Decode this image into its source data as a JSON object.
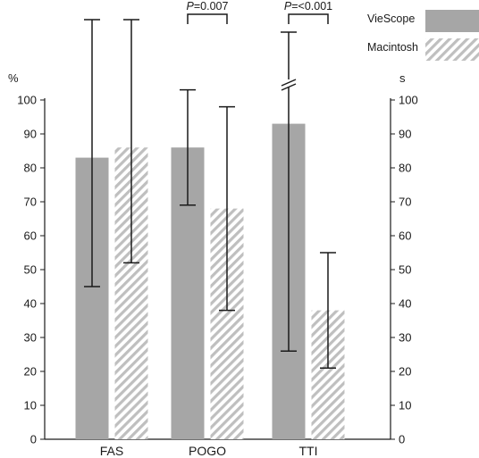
{
  "chart_data": {
    "type": "bar",
    "categories": [
      "FAS",
      "POGO",
      "TTI"
    ],
    "series": [
      {
        "name": "VieScope",
        "values": [
          83,
          86,
          93
        ],
        "error_low": [
          45,
          69,
          26
        ],
        "error_high": [
          128,
          103,
          120
        ],
        "color": "#a6a6a6",
        "fill": "solid"
      },
      {
        "name": "Macintosh",
        "values": [
          86,
          68,
          38
        ],
        "error_low": [
          52,
          38,
          21
        ],
        "error_high": [
          125,
          98,
          55
        ],
        "color": "#bfbfbf",
        "fill": "hatched"
      }
    ],
    "left_axis": {
      "unit": "%",
      "ylim": [
        0,
        100
      ],
      "ticks": [
        "0",
        "10",
        "20",
        "30",
        "40",
        "50",
        "60",
        "70",
        "80",
        "90",
        "100"
      ]
    },
    "right_axis": {
      "unit": "s",
      "ylim": [
        0,
        100
      ],
      "ticks": [
        "0",
        "10",
        "20",
        "30",
        "40",
        "50",
        "60",
        "70",
        "80",
        "90",
        "100"
      ]
    },
    "axis_break": {
      "category": "TTI",
      "series": "VieScope",
      "note": "error bar extends beyond axis (break mark)"
    },
    "annotations": [
      {
        "text": "=0.007",
        "italic_prefix": "P",
        "between": "POGO"
      },
      {
        "text": "=<0.001",
        "italic_prefix": "P",
        "between": "TTI"
      }
    ],
    "legend": {
      "position": "top-right",
      "entries": [
        "VieScope",
        "Macintosh"
      ]
    },
    "grid": false
  }
}
